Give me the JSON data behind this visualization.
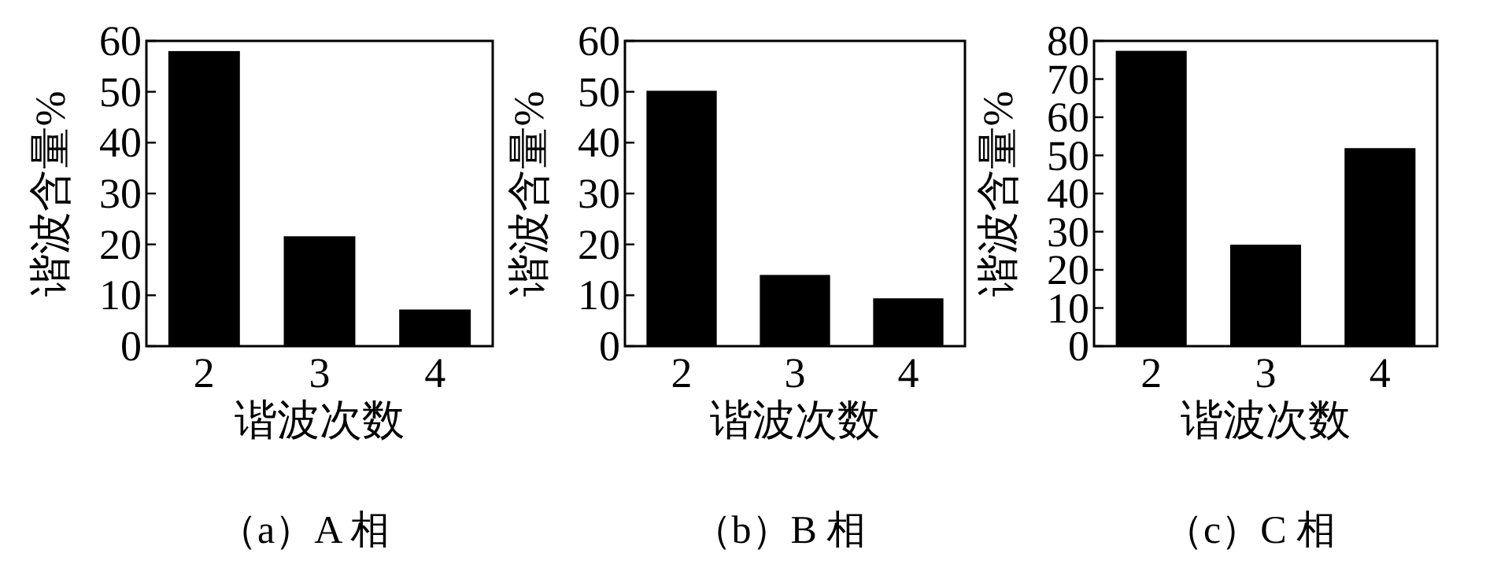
{
  "chart_data": [
    {
      "type": "bar",
      "title": "（a）A 相",
      "xlabel": "谐波次数",
      "ylabel": "谐波含量%",
      "categories": [
        "2",
        "3",
        "4"
      ],
      "values": [
        58,
        21.6,
        7.2
      ],
      "color": "#000000",
      "ylim": [
        0,
        60
      ],
      "yticks": [
        0,
        10,
        20,
        30,
        40,
        50,
        60
      ]
    },
    {
      "type": "bar",
      "title": "（b）B 相",
      "xlabel": "谐波次数",
      "ylabel": "谐波含量%",
      "categories": [
        "2",
        "3",
        "4"
      ],
      "values": [
        50.2,
        14,
        9.4
      ],
      "color": "#000000",
      "ylim": [
        0,
        60
      ],
      "yticks": [
        0,
        10,
        20,
        30,
        40,
        50,
        60
      ]
    },
    {
      "type": "bar",
      "title": "（c）C 相",
      "xlabel": "谐波次数",
      "ylabel": "谐波含量%",
      "categories": [
        "2",
        "3",
        "4"
      ],
      "values": [
        77.4,
        26.6,
        51.9
      ],
      "color": "#000000",
      "ylim": [
        0,
        80
      ],
      "yticks": [
        0,
        10,
        20,
        30,
        40,
        50,
        60,
        70,
        80
      ]
    }
  ]
}
